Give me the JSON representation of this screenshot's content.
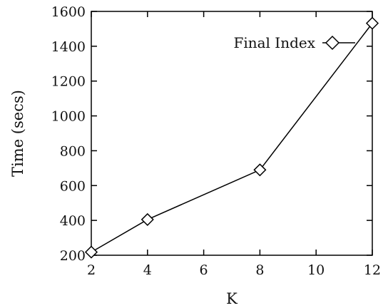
{
  "chart_data": {
    "type": "line",
    "title": "",
    "xlabel": "K",
    "ylabel": "Time (secs)",
    "xlim": [
      2,
      12
    ],
    "ylim": [
      200,
      1600
    ],
    "xticks": [
      2,
      4,
      6,
      8,
      10,
      12
    ],
    "yticks": [
      200,
      400,
      600,
      800,
      1000,
      1200,
      1400,
      1600
    ],
    "grid": false,
    "legend_position": "top-right",
    "series": [
      {
        "name": "Final Index",
        "marker": "diamond",
        "color": "#000000",
        "x": [
          2,
          4,
          8,
          12
        ],
        "y": [
          218,
          405,
          690,
          1532
        ]
      }
    ]
  }
}
